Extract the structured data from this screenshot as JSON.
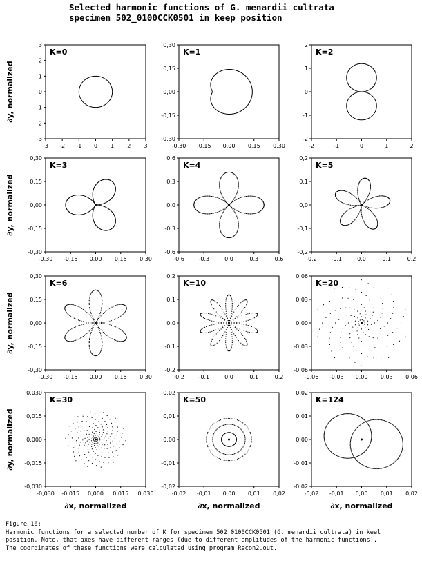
{
  "title": {
    "line1": "Selected harmonic functions of G. menardii cultrata",
    "line2": "specimen 502_0100CCK0501 in keep position"
  },
  "caption": {
    "line1": "Figure 16:",
    "line2": "Harmonic functions for a selected number of K for specimen 502_0100CCK0501 (G. menardii cultrata) in keel",
    "line3": "position. Note, that axes have different ranges (due to different amplitudes of the harmonic functions).",
    "line4": "The coordinates of these functions were calculated using program Recon2.out."
  },
  "chart_data": [
    {
      "type": "line",
      "title": "K=0",
      "xlabel": "",
      "ylabel": "∂y, normalized",
      "xlim": [
        -3,
        3
      ],
      "ylim": [
        -3,
        3
      ],
      "xticks": [
        "-3",
        "-2",
        "-1",
        "0",
        "1",
        "2",
        "3"
      ],
      "yticks": [
        "3",
        "2",
        "1",
        "0",
        "-1",
        "-2",
        "-3"
      ],
      "curve": "circle",
      "radius": 1.0,
      "dotted": false
    },
    {
      "type": "line",
      "title": "K=1",
      "xlabel": "",
      "ylabel": "",
      "xlim": [
        -0.3,
        0.3
      ],
      "ylim": [
        -0.3,
        0.3
      ],
      "xticks": [
        "-0,30",
        "-0,15",
        "0,00",
        "0,15",
        "0,30"
      ],
      "yticks": [
        "0,30",
        "0,15",
        "0,00",
        "-0,15",
        "-0,30"
      ],
      "curve": "cardioid",
      "radius": 0.09,
      "center": [
        -0.09,
        0.0
      ],
      "dotted": false
    },
    {
      "type": "line",
      "title": "K=2",
      "xlabel": "",
      "ylabel": "",
      "xlim": [
        -2,
        2
      ],
      "ylim": [
        -2,
        2
      ],
      "xticks": [
        "-2",
        "-1",
        "0",
        "1",
        "2"
      ],
      "yticks": [
        "2",
        "1",
        "0",
        "-1",
        "-2"
      ],
      "curve": "rose",
      "petals": 2,
      "amplitude": 1.2,
      "rotation_deg": 90,
      "dotted": false
    },
    {
      "type": "line",
      "title": "K=3",
      "xlabel": "",
      "ylabel": "∂y, normalized",
      "xlim": [
        -0.3,
        0.3
      ],
      "ylim": [
        -0.3,
        0.3
      ],
      "xticks": [
        "-0,30",
        "-0,15",
        "0,00",
        "0,15",
        "0,30"
      ],
      "yticks": [
        "0,30",
        "0,15",
        "0,00",
        "-0,15",
        "-0,30"
      ],
      "curve": "rose",
      "petals": 3,
      "amplitude": 0.18,
      "rotation_deg": 60,
      "dotted": true
    },
    {
      "type": "line",
      "title": "K=4",
      "xlabel": "",
      "ylabel": "",
      "xlim": [
        -0.6,
        0.6
      ],
      "ylim": [
        -0.6,
        0.6
      ],
      "xticks": [
        "-0,6",
        "-0,3",
        "0,0",
        "0,3",
        "0,6"
      ],
      "yticks": [
        "0,6",
        "0,3",
        "0,0",
        "-0,3",
        "-0,6"
      ],
      "curve": "rose",
      "petals": 4,
      "amplitude": 0.42,
      "rotation_deg": 0,
      "dotted": true
    },
    {
      "type": "line",
      "title": "K=5",
      "xlabel": "",
      "ylabel": "",
      "xlim": [
        -0.2,
        0.2
      ],
      "ylim": [
        -0.2,
        0.2
      ],
      "xticks": [
        "-0,2",
        "-0,1",
        "0,0",
        "0,1",
        "0,2"
      ],
      "yticks": [
        "0,2",
        "0,1",
        "0,0",
        "-0,1",
        "-0,2"
      ],
      "curve": "rose",
      "petals": 5,
      "amplitude": 0.115,
      "rotation_deg": 10,
      "dotted": true
    },
    {
      "type": "line",
      "title": "K=6",
      "xlabel": "",
      "ylabel": "∂y, normalized",
      "xlim": [
        -0.3,
        0.3
      ],
      "ylim": [
        -0.3,
        0.3
      ],
      "xticks": [
        "-0,30",
        "-0,15",
        "0,00",
        "0,15",
        "0,30"
      ],
      "yticks": [
        "0,30",
        "0,15",
        "0,00",
        "-0,15",
        "-0,30"
      ],
      "curve": "rose",
      "petals": 6,
      "amplitude": 0.21,
      "rotation_deg": 90,
      "dotted": true
    },
    {
      "type": "line",
      "title": "K=10",
      "xlabel": "",
      "ylabel": "",
      "xlim": [
        -0.2,
        0.2
      ],
      "ylim": [
        -0.2,
        0.2
      ],
      "xticks": [
        "-0,2",
        "-0,1",
        "0,0",
        "0,1",
        "0,2"
      ],
      "yticks": [
        "0,2",
        "0,1",
        "0,0",
        "-0,1",
        "-0,2"
      ],
      "curve": "rose",
      "petals": 10,
      "amplitude": 0.12,
      "rotation_deg": 90,
      "dotted": true
    },
    {
      "type": "scatter",
      "title": "K=20",
      "xlabel": "",
      "ylabel": "",
      "xlim": [
        -0.06,
        0.06
      ],
      "ylim": [
        -0.06,
        0.06
      ],
      "xticks": [
        "-0,06",
        "-0,03",
        "0,00",
        "0,03",
        "0,06"
      ],
      "yticks": [
        "0,06",
        "0,03",
        "0,00",
        "-0,03",
        "-0,06"
      ],
      "curve": "spiral",
      "arms": 10,
      "amplitude": 0.055,
      "dotted": true
    },
    {
      "type": "scatter",
      "title": "K=30",
      "xlabel": "∂x, normalized",
      "ylabel": "∂y, normalized",
      "xlim": [
        -0.03,
        0.03
      ],
      "ylim": [
        -0.03,
        0.03
      ],
      "xticks": [
        "-0,030",
        "-0,015",
        "0,000",
        "0,015",
        "0,030"
      ],
      "yticks": [
        "0,030",
        "0,015",
        "0,000",
        "-0,015",
        "-0,030"
      ],
      "curve": "spiral",
      "arms": 14,
      "amplitude": 0.018,
      "dotted": true
    },
    {
      "type": "line",
      "title": "K=50",
      "xlabel": "∂x, normalized",
      "ylabel": "",
      "xlim": [
        -0.02,
        0.02
      ],
      "ylim": [
        -0.02,
        0.02
      ],
      "xticks": [
        "-0,02",
        "-0,01",
        "0,00",
        "0,01",
        "0,02"
      ],
      "yticks": [
        "0,02",
        "0,01",
        "0,00",
        "-0,01",
        "-0,02"
      ],
      "curve": "rings",
      "radii": [
        0.003,
        0.0065,
        0.009
      ],
      "dotted": true
    },
    {
      "type": "line",
      "title": "K=124",
      "xlabel": "∂x, normalized",
      "ylabel": "",
      "xlim": [
        -0.02,
        0.02
      ],
      "ylim": [
        -0.02,
        0.02
      ],
      "xticks": [
        "-0,02",
        "-0,01",
        "0,00",
        "0,01",
        "0,02"
      ],
      "yticks": [
        "0,02",
        "0,01",
        "0,00",
        "-0,01",
        "-0,02"
      ],
      "curve": "twin-loops",
      "dotted": true
    }
  ]
}
